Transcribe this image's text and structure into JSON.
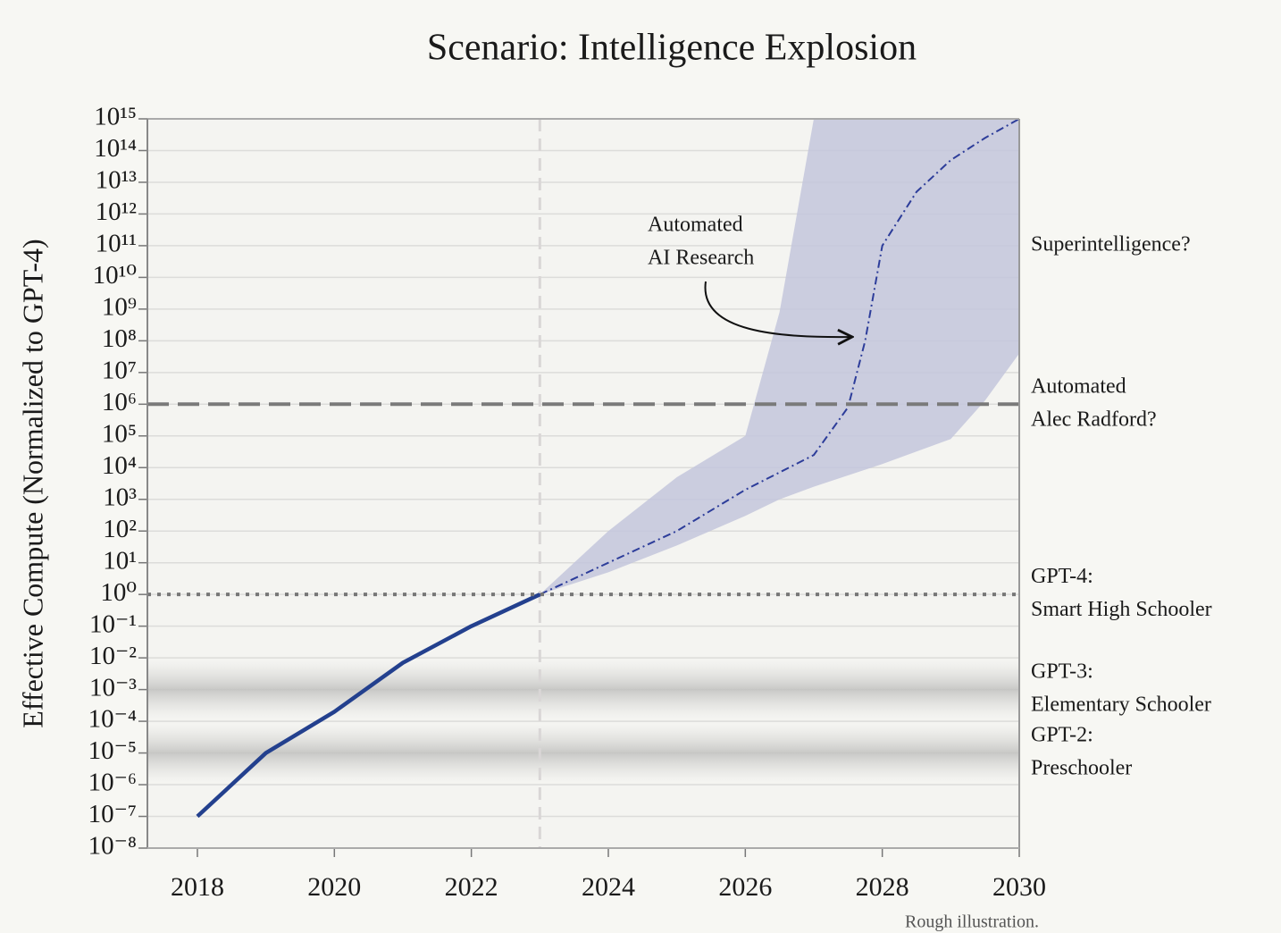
{
  "chart_data": {
    "type": "line",
    "title": "Scenario: Intelligence Explosion",
    "ylabel": "Effective Compute (Normalized to GPT-4)",
    "note": "Rough illustration.",
    "log_y": true,
    "grid": true,
    "xlim": [
      2017.27,
      2030
    ],
    "xticks": [
      2018,
      2020,
      2022,
      2024,
      2026,
      2028,
      2030
    ],
    "ylim": [
      1e-08,
      1000000000000000.0
    ],
    "yticks": [
      {
        "value": 1000000000000000.0,
        "label": "10¹⁵"
      },
      {
        "value": 100000000000000.0,
        "label": "10¹⁴"
      },
      {
        "value": 10000000000000.0,
        "label": "10¹³"
      },
      {
        "value": 1000000000000.0,
        "label": "10¹²"
      },
      {
        "value": 100000000000.0,
        "label": "10¹¹"
      },
      {
        "value": 10000000000.0,
        "label": "10¹⁰"
      },
      {
        "value": 1000000000.0,
        "label": "10⁹"
      },
      {
        "value": 100000000.0,
        "label": "10⁸"
      },
      {
        "value": 10000000.0,
        "label": "10⁷"
      },
      {
        "value": 1000000.0,
        "label": "10⁶"
      },
      {
        "value": 100000.0,
        "label": "10⁵"
      },
      {
        "value": 10000.0,
        "label": "10⁴"
      },
      {
        "value": 1000.0,
        "label": "10³"
      },
      {
        "value": 100.0,
        "label": "10²"
      },
      {
        "value": 10.0,
        "label": "10¹"
      },
      {
        "value": 1,
        "label": "10⁰"
      },
      {
        "value": 0.1,
        "label": "10⁻¹"
      },
      {
        "value": 0.01,
        "label": "10⁻²"
      },
      {
        "value": 0.001,
        "label": "10⁻³"
      },
      {
        "value": 0.0001,
        "label": "10⁻⁴"
      },
      {
        "value": 1e-05,
        "label": "10⁻⁵"
      },
      {
        "value": 1e-06,
        "label": "10⁻⁶"
      },
      {
        "value": 1e-07,
        "label": "10⁻⁷"
      },
      {
        "value": 1e-08,
        "label": "10⁻⁸"
      }
    ],
    "series": [
      {
        "color": "#23408e",
        "style": "solid",
        "x": [
          2018,
          2019,
          2020,
          2021,
          2022,
          2023
        ],
        "values": [
          1e-07,
          1e-05,
          0.0002,
          0.007,
          0.1,
          1
        ]
      },
      {
        "color": "#2d3d9a",
        "style": "dashdot",
        "x": [
          2023,
          2024,
          2025,
          2026,
          2027,
          2027.5,
          2027.75,
          2028,
          2028.5,
          2029,
          2029.5,
          2030
        ],
        "values": [
          1,
          10,
          100,
          2000,
          25000,
          800000,
          100000000.0,
          100000000000.0,
          5000000000000.0,
          50000000000000.0,
          250000000000000.0,
          1000000000000000.0
        ]
      }
    ],
    "band": {
      "color": "#c3c6dc",
      "x": [
        2023,
        2024,
        2025,
        2026,
        2026.5,
        2027,
        2028,
        2029,
        2029.5,
        2030
      ],
      "upper": [
        1,
        100,
        5000,
        100000,
        800000000.0,
        1000000000000000.0,
        1000000000000000.0,
        1000000000000000.0,
        1000000000000000.0,
        1000000000000000.0
      ],
      "lower": [
        1,
        5,
        35,
        300,
        1000,
        2500,
        13000,
        80000,
        1300000,
        40000000
      ]
    },
    "vlines": [
      {
        "value": 2023
      }
    ],
    "levels": [
      {
        "value": 100000000000.0,
        "line": "none",
        "label": [
          "Superintelligence?"
        ]
      },
      {
        "value": 1000000.0,
        "line": "dashed",
        "label": [
          "Automated",
          "Alec Radford?"
        ]
      },
      {
        "value": 1,
        "line": "dotted",
        "label": [
          "GPT-4:",
          "Smart High Schooler"
        ]
      },
      {
        "value": 0.001,
        "line": "shade",
        "label": [
          "GPT-3:",
          "Elementary Schooler"
        ]
      },
      {
        "value": 1e-05,
        "line": "shade",
        "label": [
          "GPT-2:",
          "Preschooler"
        ]
      }
    ],
    "annotation": {
      "lines": [
        "Automated",
        "AI Research"
      ]
    }
  }
}
